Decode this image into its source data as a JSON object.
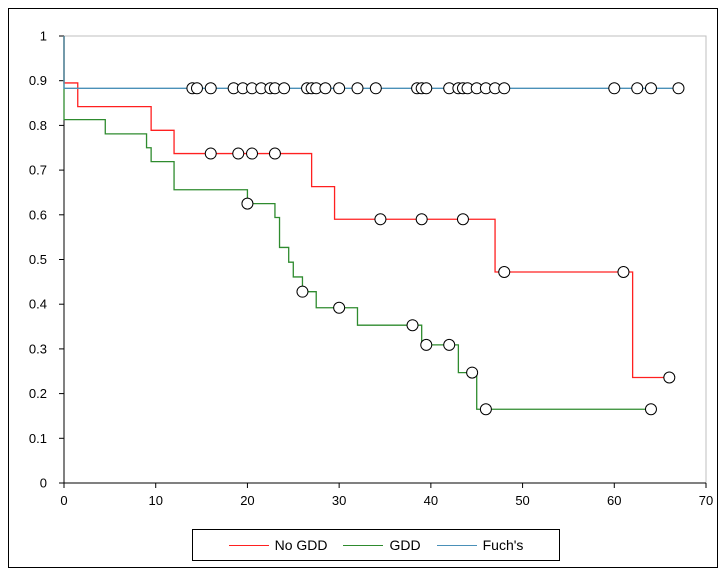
{
  "chart_data": {
    "type": "line",
    "title": "",
    "xlabel": "",
    "ylabel": "",
    "xlim": [
      0,
      70
    ],
    "ylim": [
      0,
      1
    ],
    "x_ticks": [
      "0",
      "10",
      "20",
      "30",
      "40",
      "50",
      "60",
      "70"
    ],
    "y_ticks": [
      "0",
      "0.1",
      "0.2",
      "0.3",
      "0.4",
      "0.5",
      "0.6",
      "0.7",
      "0.8",
      "0.9",
      "1"
    ],
    "grid": "none",
    "legend_placement": "bottom",
    "step": true,
    "series": [
      {
        "name": "No GDD",
        "color": "#ff2020",
        "steps": [
          [
            0,
            1.0
          ],
          [
            0,
            0.895
          ],
          [
            1.5,
            0.842
          ],
          [
            9.5,
            0.789
          ],
          [
            12,
            0.737
          ],
          [
            27,
            0.663
          ],
          [
            29.5,
            0.59
          ],
          [
            47,
            0.472
          ],
          [
            62,
            0.236
          ],
          [
            66,
            0.236
          ]
        ],
        "censored": [
          [
            16,
            0.737
          ],
          [
            19,
            0.737
          ],
          [
            20.5,
            0.737
          ],
          [
            23,
            0.737
          ],
          [
            34.5,
            0.59
          ],
          [
            39,
            0.59
          ],
          [
            43.5,
            0.59
          ],
          [
            48,
            0.472
          ],
          [
            61,
            0.472
          ],
          [
            66,
            0.236
          ]
        ]
      },
      {
        "name": "GDD",
        "color": "#2e8b2e",
        "steps": [
          [
            0,
            1.0
          ],
          [
            0,
            0.813
          ],
          [
            4.5,
            0.781
          ],
          [
            9,
            0.75
          ],
          [
            9.5,
            0.719
          ],
          [
            12,
            0.656
          ],
          [
            20,
            0.625
          ],
          [
            23,
            0.594
          ],
          [
            23.5,
            0.527
          ],
          [
            24.5,
            0.494
          ],
          [
            25,
            0.461
          ],
          [
            26,
            0.428
          ],
          [
            27.5,
            0.392
          ],
          [
            32,
            0.353
          ],
          [
            39,
            0.309
          ],
          [
            43,
            0.247
          ],
          [
            45,
            0.165
          ],
          [
            64,
            0.165
          ]
        ],
        "censored": [
          [
            20,
            0.625
          ],
          [
            26,
            0.428
          ],
          [
            30,
            0.392
          ],
          [
            38,
            0.353
          ],
          [
            39.5,
            0.309
          ],
          [
            42,
            0.309
          ],
          [
            44.5,
            0.247
          ],
          [
            46,
            0.165
          ],
          [
            64,
            0.165
          ]
        ]
      },
      {
        "name": "Fuch's",
        "color": "#4a90b8",
        "steps": [
          [
            0,
            1.0
          ],
          [
            0,
            0.883
          ],
          [
            67,
            0.883
          ]
        ],
        "censored": [
          [
            14,
            0.883
          ],
          [
            14.5,
            0.883
          ],
          [
            16,
            0.883
          ],
          [
            18.5,
            0.883
          ],
          [
            19.5,
            0.883
          ],
          [
            20.5,
            0.883
          ],
          [
            21.5,
            0.883
          ],
          [
            22.5,
            0.883
          ],
          [
            23,
            0.883
          ],
          [
            24,
            0.883
          ],
          [
            26.5,
            0.883
          ],
          [
            27,
            0.883
          ],
          [
            27.5,
            0.883
          ],
          [
            28.5,
            0.883
          ],
          [
            30,
            0.883
          ],
          [
            32,
            0.883
          ],
          [
            34,
            0.883
          ],
          [
            38.5,
            0.883
          ],
          [
            39,
            0.883
          ],
          [
            39.5,
            0.883
          ],
          [
            42,
            0.883
          ],
          [
            43,
            0.883
          ],
          [
            43.5,
            0.883
          ],
          [
            44,
            0.883
          ],
          [
            45,
            0.883
          ],
          [
            46,
            0.883
          ],
          [
            47,
            0.883
          ],
          [
            48,
            0.883
          ],
          [
            60,
            0.883
          ],
          [
            62.5,
            0.883
          ],
          [
            64,
            0.883
          ],
          [
            67,
            0.883
          ]
        ]
      }
    ]
  }
}
